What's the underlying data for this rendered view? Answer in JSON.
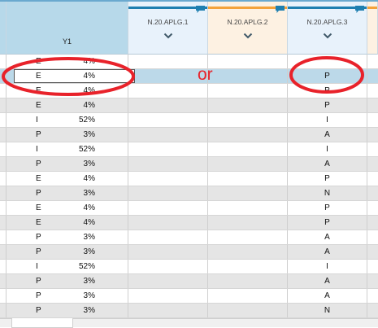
{
  "columns": [
    {
      "label": "Y1",
      "bar_color": "#b7d9ea"
    },
    {
      "label": "N.20.APLG.1",
      "bar_color": "#1e7fb0"
    },
    {
      "label": "N.20.APLG.2",
      "bar_color": "#f4a23a"
    },
    {
      "label": "N.20.APLG.3",
      "bar_color": "#1e7fb0"
    }
  ],
  "rows": [
    {
      "code": "E",
      "pct": "4%",
      "aplg3": ""
    },
    {
      "code": "E",
      "pct": "4%",
      "aplg3": "P",
      "selected": true
    },
    {
      "code": "E",
      "pct": "4%",
      "aplg3": "P"
    },
    {
      "code": "E",
      "pct": "4%",
      "aplg3": "P"
    },
    {
      "code": "I",
      "pct": "52%",
      "aplg3": "I"
    },
    {
      "code": "P",
      "pct": "3%",
      "aplg3": "A"
    },
    {
      "code": "I",
      "pct": "52%",
      "aplg3": "I"
    },
    {
      "code": "P",
      "pct": "3%",
      "aplg3": "A"
    },
    {
      "code": "E",
      "pct": "4%",
      "aplg3": "P"
    },
    {
      "code": "P",
      "pct": "3%",
      "aplg3": "N"
    },
    {
      "code": "E",
      "pct": "4%",
      "aplg3": "P"
    },
    {
      "code": "E",
      "pct": "4%",
      "aplg3": "P"
    },
    {
      "code": "P",
      "pct": "3%",
      "aplg3": "A"
    },
    {
      "code": "P",
      "pct": "3%",
      "aplg3": "A"
    },
    {
      "code": "I",
      "pct": "52%",
      "aplg3": "I"
    },
    {
      "code": "P",
      "pct": "3%",
      "aplg3": "A"
    },
    {
      "code": "P",
      "pct": "3%",
      "aplg3": "A"
    },
    {
      "code": "P",
      "pct": "3%",
      "aplg3": "N"
    }
  ],
  "annotation": {
    "text": "or",
    "color": "#e8222a"
  },
  "icons": {
    "column_menu": "chevron-down-icon",
    "column_flag": "comment-flag-icon"
  }
}
